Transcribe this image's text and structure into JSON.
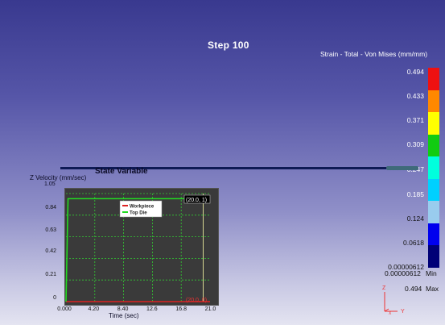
{
  "step_label": "Step 100",
  "legend": {
    "title": "Strain - Total - Von Mises (mm/mm)",
    "values": [
      "0.494",
      "0.433",
      "0.371",
      "0.309",
      "0.247",
      "0.185",
      "0.124",
      "0.0618",
      "0.00000612"
    ],
    "min_value": "0.00000612",
    "min_label": "Min",
    "max_value": "0.494",
    "max_label": "Max",
    "colors": [
      "#ee1111",
      "#ff8800",
      "#ffff00",
      "#11cc11",
      "#00ffdd",
      "#00d0ff",
      "#99ccee",
      "#0000ee",
      "#000077"
    ]
  },
  "state_variable": {
    "title": "State Variable",
    "y_label": "Z Velocity (mm/sec)",
    "x_label": "Time (sec)",
    "y_max_label": "1.05",
    "y_ticks": [
      "0.84",
      "0.63",
      "0.42",
      "0.21",
      "0"
    ],
    "x_ticks": [
      "0.000",
      "4.20",
      "8.40",
      "12.6",
      "16.8",
      "21.0"
    ],
    "legend_items": [
      {
        "name": "Workpiece",
        "color": "#dd2222"
      },
      {
        "name": "Top Die",
        "color": "#22dd22"
      }
    ],
    "marker_top": "(20.0, 1)",
    "marker_bottom": "(20.0, 0)",
    "plot_bg": "#3a3a3a",
    "grid_color": "#33cc33"
  },
  "chart_data": {
    "type": "line",
    "title": "State Variable",
    "xlabel": "Time (sec)",
    "ylabel": "Z Velocity (mm/sec)",
    "xlim": [
      0,
      21
    ],
    "ylim": [
      0,
      1.05
    ],
    "series": [
      {
        "name": "Workpiece",
        "x": [
          0,
          21
        ],
        "y": [
          0,
          0
        ]
      },
      {
        "name": "Top Die",
        "x": [
          0,
          0.3,
          21
        ],
        "y": [
          0,
          1,
          1
        ]
      }
    ]
  },
  "axes_icon": {
    "z_label": "Z",
    "y_label": "Y",
    "x_label": "X"
  }
}
